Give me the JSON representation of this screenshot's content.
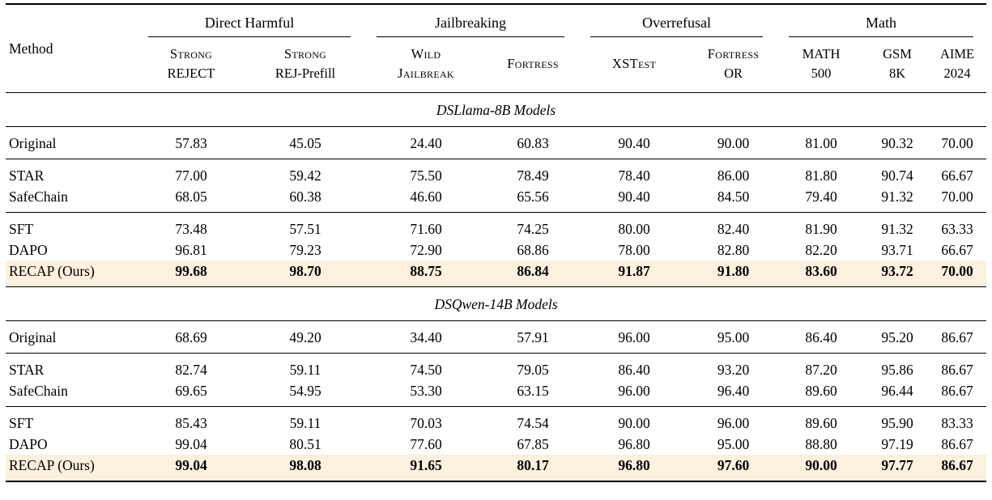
{
  "table": {
    "method_header": "Method",
    "highlight_color": "#fcf0de",
    "rule_color": "#000000",
    "groups": [
      {
        "label": "Direct Harmful",
        "span": 2
      },
      {
        "label": "Jailbreaking",
        "span": 2
      },
      {
        "label": "Overrefusal",
        "span": 2
      },
      {
        "label": "Math",
        "span": 3
      }
    ],
    "columns": [
      {
        "lines": [
          "Strong",
          "REJECT"
        ],
        "smallcaps": [
          true,
          false
        ]
      },
      {
        "lines": [
          "Strong",
          "REJ-Prefill"
        ],
        "smallcaps": [
          true,
          false
        ]
      },
      {
        "lines": [
          "Wild",
          "Jailbreak"
        ],
        "smallcaps": [
          true,
          true
        ]
      },
      {
        "lines": [
          "Fortress"
        ],
        "smallcaps": [
          true
        ]
      },
      {
        "lines": [
          "XSTest"
        ],
        "smallcaps": [
          true
        ]
      },
      {
        "lines": [
          "Fortress",
          "OR"
        ],
        "smallcaps": [
          true,
          false
        ]
      },
      {
        "lines": [
          "MATH",
          "500"
        ],
        "smallcaps": [
          false,
          false
        ]
      },
      {
        "lines": [
          "GSM",
          "8K"
        ],
        "smallcaps": [
          false,
          false
        ]
      },
      {
        "lines": [
          "AIME",
          "2024"
        ],
        "smallcaps": [
          false,
          false
        ]
      }
    ],
    "sections": [
      {
        "title": "DSLlama-8B Models",
        "row_groups": [
          [
            {
              "method": "Original",
              "values": [
                "57.83",
                "45.05",
                "24.40",
                "60.83",
                "90.40",
                "90.00",
                "81.00",
                "90.32",
                "70.00"
              ]
            }
          ],
          [
            {
              "method": "STAR",
              "values": [
                "77.00",
                "59.42",
                "75.50",
                "78.49",
                "78.40",
                "86.00",
                "81.80",
                "90.74",
                "66.67"
              ]
            },
            {
              "method": "SafeChain",
              "values": [
                "68.05",
                "60.38",
                "46.60",
                "65.56",
                "90.40",
                "84.50",
                "79.40",
                "91.32",
                "70.00"
              ]
            }
          ],
          [
            {
              "method": "SFT",
              "values": [
                "73.48",
                "57.51",
                "71.60",
                "74.25",
                "80.00",
                "82.40",
                "81.90",
                "91.32",
                "63.33"
              ]
            },
            {
              "method": "DAPO",
              "values": [
                "96.81",
                "79.23",
                "72.90",
                "68.86",
                "78.00",
                "82.80",
                "82.20",
                "93.71",
                "66.67"
              ]
            },
            {
              "method": "RECAP (Ours)",
              "values": [
                "99.68",
                "98.70",
                "88.75",
                "86.84",
                "91.87",
                "91.80",
                "83.60",
                "93.72",
                "70.00"
              ],
              "highlight": true,
              "bold_values": true
            }
          ]
        ]
      },
      {
        "title": "DSQwen-14B Models",
        "row_groups": [
          [
            {
              "method": "Original",
              "values": [
                "68.69",
                "49.20",
                "34.40",
                "57.91",
                "96.00",
                "95.00",
                "86.40",
                "95.20",
                "86.67"
              ]
            }
          ],
          [
            {
              "method": "STAR",
              "values": [
                "82.74",
                "59.11",
                "74.50",
                "79.05",
                "86.40",
                "93.20",
                "87.20",
                "95.86",
                "86.67"
              ]
            },
            {
              "method": "SafeChain",
              "values": [
                "69.65",
                "54.95",
                "53.30",
                "63.15",
                "96.00",
                "96.40",
                "89.60",
                "96.44",
                "86.67"
              ]
            }
          ],
          [
            {
              "method": "SFT",
              "values": [
                "85.43",
                "59.11",
                "70.03",
                "74.54",
                "90.00",
                "96.00",
                "89.60",
                "95.90",
                "83.33"
              ]
            },
            {
              "method": "DAPO",
              "values": [
                "99.04",
                "80.51",
                "77.60",
                "67.85",
                "96.80",
                "95.00",
                "88.80",
                "97.19",
                "86.67"
              ]
            },
            {
              "method": "RECAP (Ours)",
              "values": [
                "99.04",
                "98.08",
                "91.65",
                "80.17",
                "96.80",
                "97.60",
                "90.00",
                "97.77",
                "86.67"
              ],
              "highlight": true,
              "bold_values": true
            }
          ]
        ]
      }
    ]
  }
}
